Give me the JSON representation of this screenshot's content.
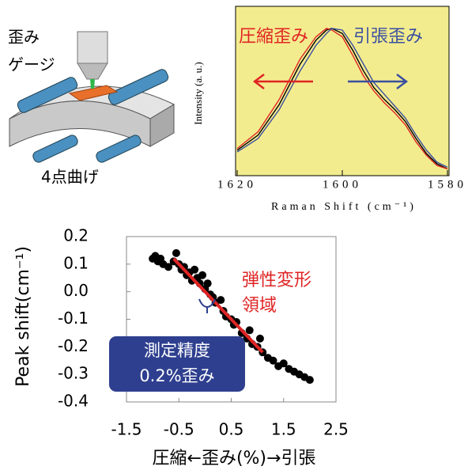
{
  "illustration": {
    "gauge_label": [
      "歪み",
      "ゲージ"
    ],
    "bending_label": "4点曲げ"
  },
  "chart_data": [
    {
      "type": "line",
      "ylabel": "Intensity (a. u.)",
      "xlabel": "Raman Shift (cm⁻¹)",
      "background": "#f3ec8e",
      "xlim": [
        1620,
        1580
      ],
      "xticks": [
        1620,
        1600,
        1580
      ],
      "ylim": [
        0,
        1
      ],
      "annotations": [
        {
          "text": "圧縮歪み",
          "color": "#e02424"
        },
        {
          "text": "引張歪み",
          "color": "#3a4fa0"
        }
      ],
      "series": [
        {
          "color": "#000000",
          "x": [
            1620,
            1616,
            1612,
            1608,
            1605,
            1603,
            1602,
            1600,
            1598,
            1596,
            1594,
            1592,
            1590,
            1588,
            1586,
            1584,
            1582,
            1580
          ],
          "values": [
            0.15,
            0.24,
            0.42,
            0.66,
            0.8,
            0.86,
            0.87,
            0.84,
            0.74,
            0.62,
            0.52,
            0.45,
            0.39,
            0.32,
            0.22,
            0.13,
            0.07,
            0.04
          ]
        },
        {
          "color": "#e02424",
          "x": [
            1620,
            1616,
            1612,
            1608,
            1605,
            1603,
            1602,
            1600,
            1598,
            1596,
            1594,
            1592,
            1590,
            1588,
            1586,
            1584,
            1582,
            1580
          ],
          "values": [
            0.16,
            0.26,
            0.45,
            0.69,
            0.82,
            0.87,
            0.86,
            0.82,
            0.71,
            0.59,
            0.5,
            0.43,
            0.37,
            0.3,
            0.2,
            0.12,
            0.06,
            0.04
          ]
        },
        {
          "color": "#3a4fa0",
          "x": [
            1620,
            1616,
            1612,
            1608,
            1605,
            1603,
            1602,
            1600,
            1598,
            1596,
            1594,
            1592,
            1590,
            1588,
            1586,
            1584,
            1582,
            1580
          ],
          "values": [
            0.14,
            0.22,
            0.39,
            0.62,
            0.77,
            0.84,
            0.87,
            0.86,
            0.77,
            0.66,
            0.55,
            0.48,
            0.41,
            0.34,
            0.24,
            0.15,
            0.08,
            0.05
          ]
        }
      ]
    },
    {
      "type": "scatter",
      "ylabel": "Peak shift(cm⁻¹)",
      "xlabel": "圧縮←歪み(%)→引張",
      "xlim": [
        -1.5,
        2.5
      ],
      "xticks": [
        -1.5,
        -0.5,
        0.5,
        1.5,
        2.5
      ],
      "ylim": [
        -0.4,
        0.2
      ],
      "yticks": [
        0.2,
        0.1,
        {
          "value": 0,
          "label": "0.0"
        },
        -0.1,
        -0.2,
        -0.3,
        -0.4
      ],
      "annotation": {
        "lines": [
          "弾性変形",
          "領域"
        ],
        "color": "#e02424"
      },
      "note": {
        "lines": [
          "測定精度",
          "0.2%歪み"
        ],
        "color": "#2e3f8f"
      },
      "series": [
        {
          "color": "#000000",
          "x": [
            -1.0,
            -0.95,
            -0.9,
            -0.85,
            -0.8,
            -0.7,
            -0.6,
            -0.55,
            -0.5,
            -0.45,
            -0.4,
            -0.35,
            -0.3,
            -0.25,
            -0.2,
            -0.15,
            -0.1,
            -0.05,
            0.0,
            0.05,
            0.1,
            0.15,
            0.2,
            0.3,
            0.35,
            0.4,
            0.5,
            0.55,
            0.6,
            0.7,
            0.8,
            0.85,
            0.9,
            1.0,
            1.05,
            1.1,
            1.2,
            1.3,
            1.4,
            1.5,
            1.6,
            1.7,
            1.8,
            1.9,
            2.0
          ],
          "values": [
            0.12,
            0.13,
            0.11,
            0.12,
            0.1,
            0.09,
            0.11,
            0.14,
            0.1,
            0.08,
            0.09,
            0.06,
            0.07,
            0.04,
            0.08,
            0.05,
            0.03,
            0.06,
            0.01,
            0.03,
            -0.01,
            -0.02,
            -0.04,
            -0.03,
            -0.07,
            -0.09,
            -0.1,
            -0.12,
            -0.11,
            -0.15,
            -0.17,
            -0.14,
            -0.19,
            -0.2,
            -0.17,
            -0.22,
            -0.24,
            -0.25,
            -0.27,
            -0.26,
            -0.28,
            -0.29,
            -0.3,
            -0.31,
            -0.32
          ]
        },
        {
          "type": "line",
          "color": "#e02424",
          "x": [
            -0.6,
            1.1
          ],
          "values": [
            0.12,
            -0.22
          ]
        }
      ]
    }
  ]
}
